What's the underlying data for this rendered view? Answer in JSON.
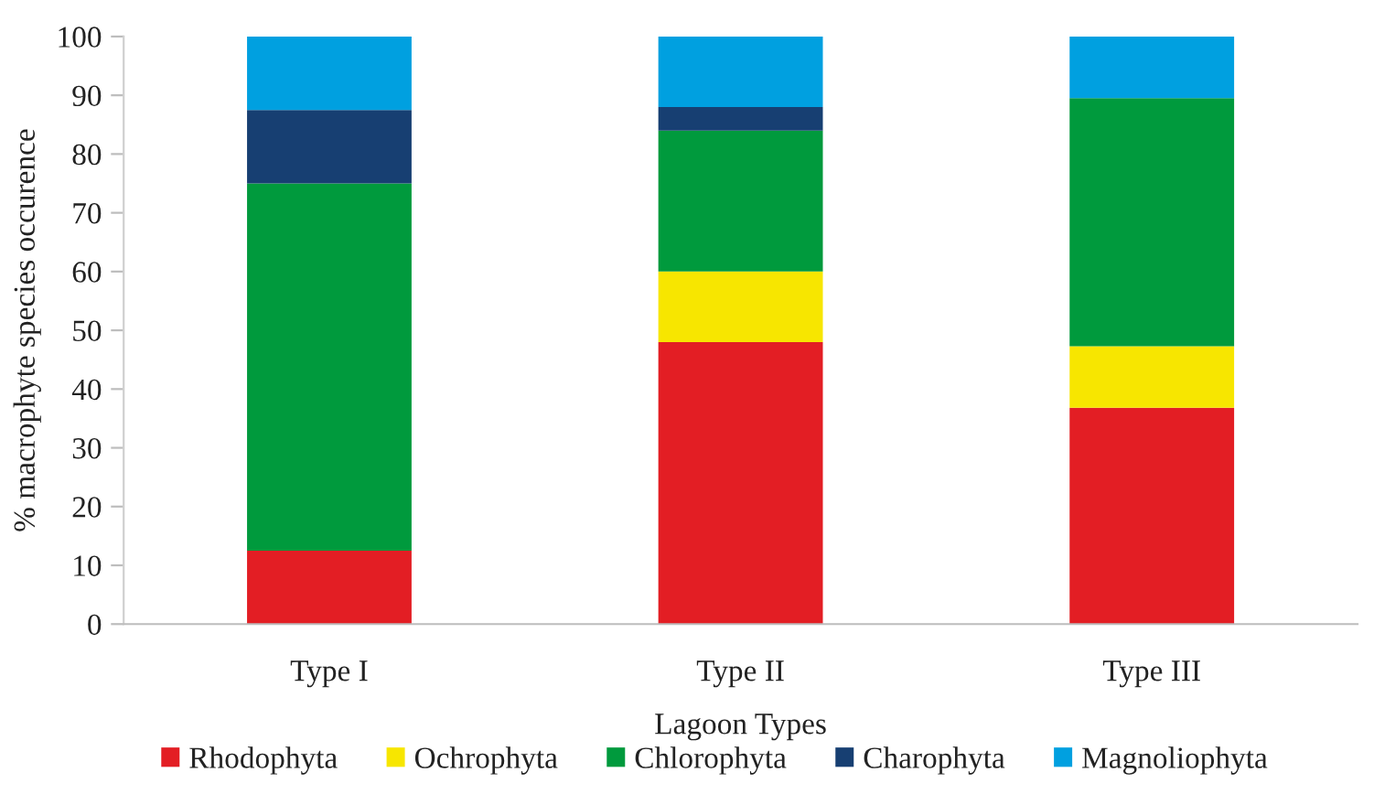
{
  "chart_data": {
    "type": "bar",
    "stacked": true,
    "xlabel": "Lagoon Types",
    "ylabel": "% macrophyte species occurence",
    "categories": [
      "Type I",
      "Type II",
      "Type III"
    ],
    "series": [
      {
        "name": "Rhodophyta",
        "color": "#e31e24",
        "values": [
          12.5,
          48,
          36.8
        ]
      },
      {
        "name": "Ochrophyta",
        "color": "#f7e600",
        "values": [
          0,
          12,
          10.5
        ]
      },
      {
        "name": "Chlorophyta",
        "color": "#009a3d",
        "values": [
          62.5,
          24,
          42.2
        ]
      },
      {
        "name": "Charophyta",
        "color": "#173f72",
        "values": [
          12.5,
          4,
          0
        ]
      },
      {
        "name": "Magnoliophyta",
        "color": "#00a0e0",
        "values": [
          12.5,
          12,
          10.5
        ]
      }
    ],
    "ylim": [
      0,
      100
    ],
    "yticks": [
      0,
      10,
      20,
      30,
      40,
      50,
      60,
      70,
      80,
      90,
      100
    ],
    "grid": false,
    "legend": "bottom"
  }
}
